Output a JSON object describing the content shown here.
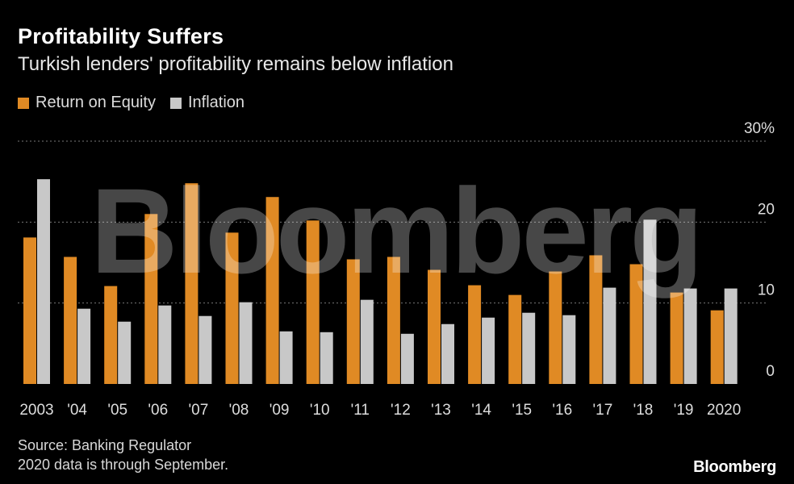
{
  "colors": {
    "roe": "#e08a24",
    "inflation": "#c8c8c8",
    "grid": "#777777",
    "tick": "#dddddd"
  },
  "chart_data": {
    "type": "bar",
    "title": "Profitability Suffers",
    "subtitle": "Turkish lenders' profitability remains below inflation",
    "categories": [
      "2003",
      "'04",
      "'05",
      "'06",
      "'07",
      "'08",
      "'09",
      "'10",
      "'11",
      "'12",
      "'13",
      "'14",
      "'15",
      "'16",
      "'17",
      "'18",
      "'19",
      "2020"
    ],
    "series": [
      {
        "name": "Return on Equity",
        "color": "#e08a24",
        "values": [
          18.1,
          15.7,
          12.1,
          21.0,
          24.8,
          18.7,
          23.1,
          20.2,
          15.4,
          15.7,
          14.1,
          12.2,
          11.0,
          13.9,
          15.9,
          14.8,
          11.3,
          9.1
        ]
      },
      {
        "name": "Inflation",
        "color": "#c8c8c8",
        "values": [
          25.3,
          9.3,
          7.7,
          9.7,
          8.4,
          10.1,
          6.5,
          6.4,
          10.4,
          6.2,
          7.4,
          8.2,
          8.8,
          8.5,
          11.9,
          20.3,
          11.8,
          11.8
        ]
      }
    ],
    "ylim": [
      0,
      30
    ],
    "yticks": [
      {
        "value": 0,
        "label": "0"
      },
      {
        "value": 10,
        "label": "10"
      },
      {
        "value": 20,
        "label": "20"
      },
      {
        "value": 30,
        "label": "30%"
      }
    ],
    "xlabel": "",
    "ylabel": "",
    "grid": true,
    "legend_position": "top-left"
  },
  "footnotes": {
    "source": "Source: Banking Regulator",
    "note": "2020 data is through September."
  },
  "watermark": "Bloomberg",
  "brand": "Bloomberg"
}
